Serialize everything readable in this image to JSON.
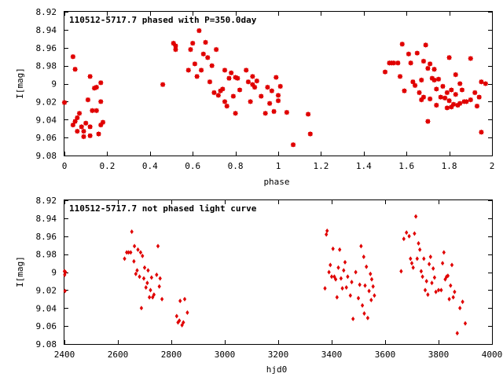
{
  "chart_data": [
    {
      "type": "scatter",
      "title": "110512-5717.7 phased with P=350.0day",
      "xlabel": "phase",
      "ylabel": "I[mag]",
      "xlim": [
        0,
        2
      ],
      "ylim": [
        8.92,
        9.08
      ],
      "y_inverted": true,
      "x_ticks": [
        0,
        0.2,
        0.4,
        0.6,
        0.8,
        1,
        1.2,
        1.4,
        1.6,
        1.8,
        2
      ],
      "x_tick_labels": [
        "0",
        "0.2",
        "0.4",
        "0.6",
        "0.8",
        "1",
        "1.2",
        "1.4",
        "1.6",
        "1.8",
        "2"
      ],
      "y_ticks": [
        8.92,
        8.94,
        8.96,
        8.98,
        9.0,
        9.02,
        9.04,
        9.06,
        9.08
      ],
      "y_tick_labels": [
        "8.92",
        "8.94",
        "8.96",
        "8.98",
        "9",
        "9.02",
        "9.04",
        "9.06",
        "9.08"
      ],
      "marker_color": "#e00000",
      "marker": "star",
      "points": [
        [
          0.0,
          9.021
        ],
        [
          0.04,
          8.97
        ],
        [
          0.05,
          8.984
        ],
        [
          0.04,
          9.046
        ],
        [
          0.05,
          9.042
        ],
        [
          0.06,
          9.038
        ],
        [
          0.06,
          9.053
        ],
        [
          0.07,
          9.033
        ],
        [
          0.08,
          9.048
        ],
        [
          0.09,
          9.059
        ],
        [
          0.09,
          9.053
        ],
        [
          0.1,
          9.044
        ],
        [
          0.11,
          9.018
        ],
        [
          0.12,
          8.992
        ],
        [
          0.12,
          9.058
        ],
        [
          0.12,
          9.048
        ],
        [
          0.13,
          9.03
        ],
        [
          0.14,
          9.005
        ],
        [
          0.15,
          9.03
        ],
        [
          0.15,
          9.004
        ],
        [
          0.16,
          9.056
        ],
        [
          0.17,
          8.999
        ],
        [
          0.17,
          9.046
        ],
        [
          0.17,
          9.02
        ],
        [
          0.18,
          9.043
        ],
        [
          0.46,
          9.001
        ],
        [
          0.51,
          8.955
        ],
        [
          0.52,
          8.958
        ],
        [
          0.52,
          8.962
        ],
        [
          0.58,
          8.985
        ],
        [
          0.59,
          8.962
        ],
        [
          0.6,
          8.955
        ],
        [
          0.61,
          8.978
        ],
        [
          0.62,
          8.992
        ],
        [
          0.63,
          8.941
        ],
        [
          0.64,
          8.985
        ],
        [
          0.65,
          8.967
        ],
        [
          0.66,
          8.954
        ],
        [
          0.67,
          8.971
        ],
        [
          0.68,
          8.998
        ],
        [
          0.69,
          8.98
        ],
        [
          0.7,
          9.01
        ],
        [
          0.71,
          8.962
        ],
        [
          0.72,
          9.013
        ],
        [
          0.73,
          9.008
        ],
        [
          0.74,
          9.006
        ],
        [
          0.75,
          8.985
        ],
        [
          0.75,
          9.02
        ],
        [
          0.76,
          9.025
        ],
        [
          0.77,
          8.994
        ],
        [
          0.78,
          8.988
        ],
        [
          0.79,
          9.014
        ],
        [
          0.8,
          9.033
        ],
        [
          0.8,
          8.993
        ],
        [
          0.81,
          8.994
        ],
        [
          0.82,
          9.007
        ],
        [
          0.85,
          8.985
        ],
        [
          0.86,
          8.998
        ],
        [
          0.87,
          9.02
        ],
        [
          0.88,
          9.001
        ],
        [
          0.88,
          8.992
        ],
        [
          0.89,
          9.004
        ],
        [
          0.9,
          8.997
        ],
        [
          0.92,
          9.014
        ],
        [
          0.94,
          9.033
        ],
        [
          0.95,
          9.004
        ],
        [
          0.96,
          9.022
        ],
        [
          0.97,
          9.008
        ],
        [
          0.98,
          9.031
        ],
        [
          0.99,
          8.993
        ],
        [
          1.0,
          9.013
        ],
        [
          1.0,
          9.019
        ],
        [
          1.01,
          9.003
        ],
        [
          1.04,
          9.032
        ],
        [
          1.07,
          9.068
        ],
        [
          1.14,
          9.034
        ],
        [
          1.15,
          9.056
        ],
        [
          1.5,
          8.987
        ],
        [
          1.52,
          8.977
        ],
        [
          1.53,
          8.977
        ],
        [
          1.54,
          8.977
        ],
        [
          1.56,
          8.977
        ],
        [
          1.57,
          8.992
        ],
        [
          1.58,
          8.956
        ],
        [
          1.59,
          9.008
        ],
        [
          1.61,
          8.967
        ],
        [
          1.62,
          8.977
        ],
        [
          1.63,
          8.998
        ],
        [
          1.64,
          9.002
        ],
        [
          1.65,
          8.966
        ],
        [
          1.66,
          9.01
        ],
        [
          1.67,
          8.996
        ],
        [
          1.67,
          9.018
        ],
        [
          1.68,
          8.975
        ],
        [
          1.68,
          9.015
        ],
        [
          1.69,
          8.957
        ],
        [
          1.7,
          9.042
        ],
        [
          1.7,
          8.983
        ],
        [
          1.71,
          8.978
        ],
        [
          1.71,
          9.017
        ],
        [
          1.72,
          8.994
        ],
        [
          1.73,
          8.996
        ],
        [
          1.73,
          8.984
        ],
        [
          1.74,
          9.006
        ],
        [
          1.74,
          9.024
        ],
        [
          1.75,
          8.995
        ],
        [
          1.76,
          9.015
        ],
        [
          1.77,
          9.003
        ],
        [
          1.78,
          9.016
        ],
        [
          1.79,
          9.027
        ],
        [
          1.79,
          9.01
        ],
        [
          1.8,
          9.019
        ],
        [
          1.8,
          8.971
        ],
        [
          1.81,
          9.007
        ],
        [
          1.81,
          9.026
        ],
        [
          1.82,
          9.023
        ],
        [
          1.83,
          8.99
        ],
        [
          1.83,
          9.012
        ],
        [
          1.84,
          9.024
        ],
        [
          1.85,
          9.0
        ],
        [
          1.85,
          9.022
        ],
        [
          1.86,
          9.007
        ],
        [
          1.87,
          9.02
        ],
        [
          1.88,
          9.02
        ],
        [
          1.9,
          8.972
        ],
        [
          1.9,
          9.018
        ],
        [
          1.92,
          9.01
        ],
        [
          1.93,
          9.025
        ],
        [
          1.94,
          9.015
        ],
        [
          1.95,
          8.998
        ],
        [
          1.95,
          9.054
        ],
        [
          1.97,
          9.0
        ]
      ]
    },
    {
      "type": "scatter",
      "title": "110512-5717.7 not phased light curve",
      "xlabel": "hjd0",
      "ylabel": "I[mag]",
      "xlim": [
        2400,
        4000
      ],
      "ylim": [
        8.92,
        9.08
      ],
      "y_inverted": true,
      "x_ticks": [
        2400,
        2600,
        2800,
        3000,
        3200,
        3400,
        3600,
        3800,
        4000
      ],
      "x_tick_labels": [
        "2400",
        "2600",
        "2800",
        "3000",
        "3200",
        "3400",
        "3600",
        "3800",
        "4000"
      ],
      "y_ticks": [
        8.92,
        8.94,
        8.96,
        8.98,
        9.0,
        9.02,
        9.04,
        9.06,
        9.08
      ],
      "y_tick_labels": [
        "8.92",
        "8.94",
        "8.96",
        "8.98",
        "9",
        "9.02",
        "9.04",
        "9.06",
        "9.08"
      ],
      "marker_color": "#e00000",
      "marker": "diamond",
      "points": [
        [
          2400,
          8.999
        ],
        [
          2401,
          9.003
        ],
        [
          2402,
          9.021
        ],
        [
          2404,
          9.0
        ],
        [
          2625,
          8.985
        ],
        [
          2633,
          8.978
        ],
        [
          2640,
          8.978
        ],
        [
          2648,
          8.978
        ],
        [
          2652,
          8.955
        ],
        [
          2660,
          8.988
        ],
        [
          2662,
          8.971
        ],
        [
          2667,
          9.002
        ],
        [
          2672,
          8.998
        ],
        [
          2675,
          8.975
        ],
        [
          2681,
          9.005
        ],
        [
          2685,
          8.978
        ],
        [
          2688,
          9.04
        ],
        [
          2692,
          8.982
        ],
        [
          2697,
          9.007
        ],
        [
          2700,
          8.995
        ],
        [
          2705,
          9.017
        ],
        [
          2710,
          9.012
        ],
        [
          2713,
          8.998
        ],
        [
          2718,
          9.028
        ],
        [
          2722,
          9.02
        ],
        [
          2726,
          9.006
        ],
        [
          2730,
          9.028
        ],
        [
          2735,
          9.025
        ],
        [
          2745,
          9.003
        ],
        [
          2750,
          8.971
        ],
        [
          2755,
          9.016
        ],
        [
          2758,
          9.007
        ],
        [
          2765,
          9.03
        ],
        [
          2820,
          9.049
        ],
        [
          2825,
          9.056
        ],
        [
          2830,
          9.054
        ],
        [
          2833,
          9.032
        ],
        [
          2840,
          9.059
        ],
        [
          2845,
          9.056
        ],
        [
          2850,
          9.03
        ],
        [
          2860,
          9.045
        ],
        [
          3375,
          9.018
        ],
        [
          3380,
          8.958
        ],
        [
          3383,
          8.954
        ],
        [
          3390,
          9.0
        ],
        [
          3395,
          8.992
        ],
        [
          3400,
          9.005
        ],
        [
          3405,
          8.974
        ],
        [
          3410,
          9.005
        ],
        [
          3415,
          9.008
        ],
        [
          3420,
          9.028
        ],
        [
          3425,
          8.995
        ],
        [
          3430,
          8.975
        ],
        [
          3435,
          9.007
        ],
        [
          3440,
          9.018
        ],
        [
          3445,
          8.998
        ],
        [
          3450,
          8.989
        ],
        [
          3455,
          9.017
        ],
        [
          3460,
          9.005
        ],
        [
          3470,
          9.026
        ],
        [
          3475,
          9.011
        ],
        [
          3480,
          9.052
        ],
        [
          3490,
          9.0
        ],
        [
          3500,
          9.029
        ],
        [
          3505,
          9.014
        ],
        [
          3510,
          8.971
        ],
        [
          3515,
          9.037
        ],
        [
          3520,
          8.983
        ],
        [
          3522,
          9.046
        ],
        [
          3525,
          9.015
        ],
        [
          3530,
          8.994
        ],
        [
          3535,
          9.051
        ],
        [
          3540,
          9.021
        ],
        [
          3545,
          9.002
        ],
        [
          3548,
          9.031
        ],
        [
          3550,
          9.008
        ],
        [
          3555,
          9.016
        ],
        [
          3560,
          9.026
        ],
        [
          3660,
          8.999
        ],
        [
          3670,
          8.963
        ],
        [
          3680,
          8.956
        ],
        [
          3690,
          8.96
        ],
        [
          3695,
          8.985
        ],
        [
          3700,
          8.99
        ],
        [
          3705,
          8.995
        ],
        [
          3710,
          8.957
        ],
        [
          3715,
          8.938
        ],
        [
          3720,
          8.985
        ],
        [
          3725,
          8.968
        ],
        [
          3730,
          8.975
        ],
        [
          3735,
          8.999
        ],
        [
          3740,
          9.005
        ],
        [
          3745,
          8.985
        ],
        [
          3750,
          9.02
        ],
        [
          3755,
          9.01
        ],
        [
          3760,
          9.025
        ],
        [
          3765,
          8.991
        ],
        [
          3770,
          8.983
        ],
        [
          3775,
          9.012
        ],
        [
          3780,
          8.996
        ],
        [
          3785,
          9.006
        ],
        [
          3790,
          9.022
        ],
        [
          3800,
          9.02
        ],
        [
          3810,
          9.02
        ],
        [
          3815,
          8.99
        ],
        [
          3820,
          8.978
        ],
        [
          3825,
          9.008
        ],
        [
          3830,
          9.005
        ],
        [
          3835,
          9.004
        ],
        [
          3840,
          9.03
        ],
        [
          3845,
          9.015
        ],
        [
          3850,
          8.992
        ],
        [
          3855,
          9.028
        ],
        [
          3860,
          9.022
        ],
        [
          3870,
          9.068
        ],
        [
          3880,
          9.04
        ],
        [
          3890,
          9.033
        ],
        [
          3900,
          9.057
        ]
      ]
    }
  ]
}
